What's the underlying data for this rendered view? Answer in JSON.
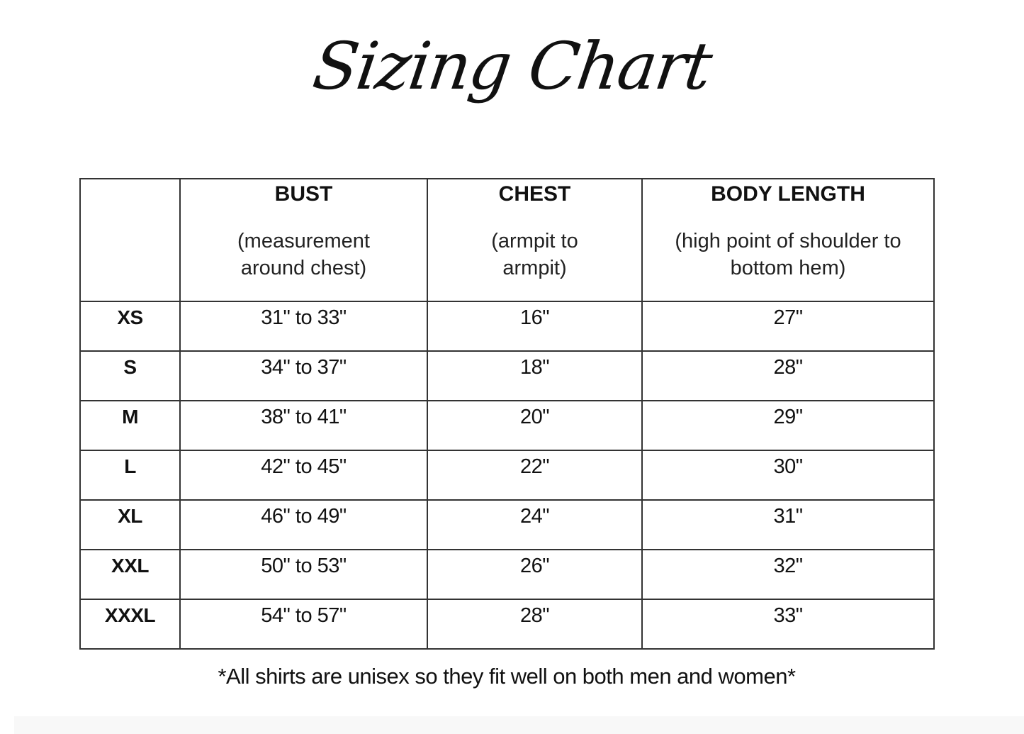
{
  "title": "Sizing Chart",
  "table": {
    "headers": [
      {
        "name": "",
        "desc": ""
      },
      {
        "name": "BUST",
        "desc": "(measurement around chest)"
      },
      {
        "name": "CHEST",
        "desc": "(armpit to armpit)"
      },
      {
        "name": "BODY LENGTH",
        "desc": "(high point of shoulder to bottom hem)"
      }
    ],
    "rows": [
      {
        "size": "XS",
        "bust": "31\" to 33\"",
        "chest": "16\"",
        "length": "27\""
      },
      {
        "size": "S",
        "bust": "34\" to 37\"",
        "chest": "18\"",
        "length": "28\""
      },
      {
        "size": "M",
        "bust": "38\" to 41\"",
        "chest": "20\"",
        "length": "29\""
      },
      {
        "size": "L",
        "bust": "42\" to 45\"",
        "chest": "22\"",
        "length": "30\""
      },
      {
        "size": "XL",
        "bust": "46\" to 49\"",
        "chest": "24\"",
        "length": "31\""
      },
      {
        "size": "XXL",
        "bust": "50\" to 53\"",
        "chest": "26\"",
        "length": "32\""
      },
      {
        "size": "XXXL",
        "bust": "54\" to 57\"",
        "chest": "28\"",
        "length": "33\""
      }
    ]
  },
  "note": "*All shirts are unisex so they fit well on both men and women*"
}
